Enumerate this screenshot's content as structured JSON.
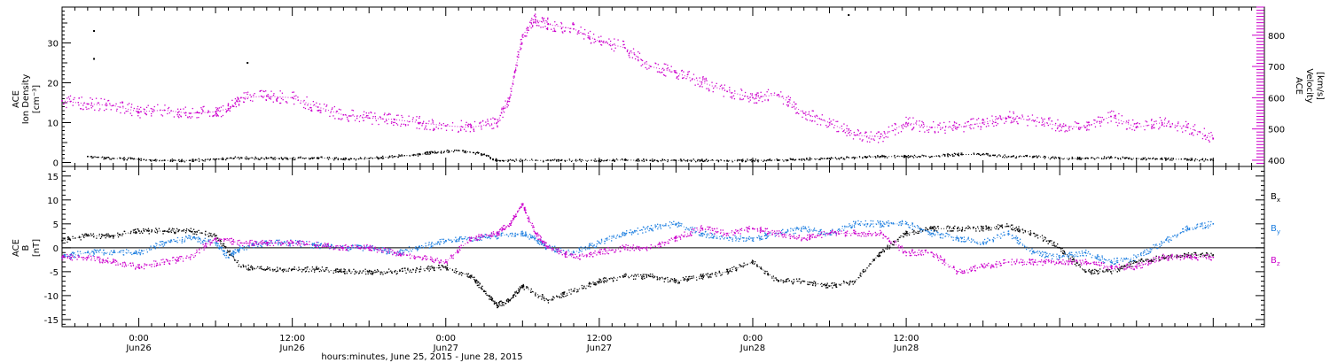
{
  "chart_data": [
    {
      "type": "scatter",
      "ylabel_left": [
        "ACE",
        "Ion Density",
        "[cm⁻³]"
      ],
      "ylabel_right": [
        "ACE",
        "Velocity",
        "[km/s]"
      ],
      "xlim_hours": [
        -6,
        88
      ],
      "ylim_left": [
        -1,
        39
      ],
      "ylim_right": [
        380,
        890
      ],
      "yticks_left": [
        "0",
        "10",
        "20",
        "30"
      ],
      "yticks_right": [
        "400",
        "500",
        "600",
        "700",
        "800"
      ],
      "series": [
        {
          "axis": "left",
          "color": "#000000",
          "x": [
            -4,
            -2,
            0,
            2,
            4,
            6,
            8,
            10,
            12,
            14,
            16,
            18,
            20,
            22,
            23,
            25,
            27,
            28,
            30,
            33,
            36,
            38,
            40,
            42,
            44,
            46,
            48,
            50,
            52,
            54,
            56,
            58,
            60,
            62,
            64,
            66,
            68,
            70,
            72,
            74,
            76,
            78,
            80,
            82,
            84
          ],
          "y": [
            1.5,
            1,
            0.8,
            0.5,
            0.5,
            0.8,
            1.2,
            1,
            1,
            1.2,
            0.8,
            1,
            1.5,
            2,
            2.5,
            3,
            2,
            0.5,
            0.5,
            0.5,
            0.5,
            0.6,
            0.5,
            0.5,
            0.5,
            0.5,
            0.5,
            0.6,
            0.8,
            1,
            1.2,
            1.5,
            1.5,
            1.5,
            2,
            2,
            1.5,
            1.5,
            1,
            1,
            1.2,
            1,
            0.8,
            0.8,
            0.5
          ]
        },
        {
          "axis": "right",
          "color": "#cc00cc",
          "x": [
            -6,
            -4,
            -2,
            0,
            2,
            4,
            6,
            7,
            8,
            10,
            12,
            14,
            16,
            18,
            20,
            22,
            24,
            26,
            28,
            29,
            30,
            31,
            32,
            34,
            36,
            38,
            40,
            42,
            44,
            46,
            48,
            50,
            52,
            54,
            56,
            58,
            60,
            62,
            64,
            66,
            68,
            70,
            72,
            74,
            76,
            78,
            80,
            82,
            84
          ],
          "y": [
            590,
            580,
            575,
            555,
            560,
            550,
            555,
            565,
            600,
            605,
            600,
            570,
            545,
            535,
            530,
            520,
            510,
            505,
            520,
            600,
            800,
            850,
            835,
            820,
            780,
            760,
            700,
            680,
            650,
            620,
            600,
            610,
            550,
            520,
            480,
            475,
            520,
            505,
            505,
            520,
            540,
            525,
            510,
            505,
            540,
            505,
            520,
            505,
            470
          ]
        }
      ]
    },
    {
      "type": "scatter",
      "ylabel_left": [
        "ACE",
        "B",
        "[nT]"
      ],
      "xlim_hours": [
        -6,
        88
      ],
      "ylim": [
        -16.5,
        17
      ],
      "yticks": [
        "-15",
        "-10",
        "-5",
        "0",
        "5",
        "10",
        "15"
      ],
      "zero_line": true,
      "legend_position": "right",
      "series": [
        {
          "name": "Bx",
          "color": "#000000",
          "x": [
            -6,
            -4,
            -2,
            0,
            2,
            4,
            6,
            8,
            10,
            12,
            14,
            16,
            18,
            20,
            22,
            24,
            26,
            27,
            28,
            29,
            30,
            32,
            34,
            36,
            38,
            40,
            42,
            44,
            46,
            48,
            50,
            52,
            54,
            56,
            58,
            60,
            62,
            64,
            66,
            68,
            70,
            72,
            74,
            76,
            78,
            80,
            82,
            84
          ],
          "y": [
            1.5,
            2.5,
            2.5,
            3.5,
            3.5,
            3.5,
            2.5,
            -4,
            -4.5,
            -4.5,
            -4.5,
            -5,
            -5,
            -5,
            -4.5,
            -4,
            -6,
            -9,
            -12,
            -11,
            -8,
            -11,
            -9,
            -7,
            -6,
            -6,
            -7,
            -6,
            -5,
            -3,
            -7,
            -7,
            -8,
            -7,
            -1,
            3,
            4,
            4,
            4,
            4.5,
            3,
            0,
            -5,
            -5,
            -3,
            -2,
            -1.5,
            -1.5
          ]
        },
        {
          "name": "By",
          "color": "#1e7fe0",
          "x": [
            -6,
            -4,
            -2,
            0,
            2,
            4,
            6,
            7,
            8,
            10,
            12,
            14,
            16,
            18,
            20,
            22,
            24,
            26,
            28,
            30,
            31,
            32,
            34,
            36,
            38,
            40,
            42,
            44,
            46,
            48,
            50,
            52,
            54,
            56,
            58,
            60,
            62,
            64,
            66,
            68,
            70,
            72,
            74,
            76,
            78,
            80,
            82,
            84
          ],
          "y": [
            -2,
            -1,
            -1,
            -1,
            1,
            2,
            1,
            -2,
            0,
            1,
            1,
            0.5,
            0,
            0,
            -1,
            0,
            1.5,
            2,
            2.5,
            3,
            2,
            0,
            -1,
            1,
            3,
            4,
            5,
            3,
            2,
            2,
            3,
            4,
            3,
            5,
            5,
            5,
            3,
            2,
            1,
            3,
            -1,
            -2,
            -1,
            -3,
            -2,
            1,
            4,
            5
          ]
        },
        {
          "name": "Bz",
          "color": "#cc00cc",
          "x": [
            -6,
            -4,
            -2,
            0,
            2,
            4,
            6,
            8,
            10,
            12,
            14,
            16,
            18,
            20,
            22,
            24,
            26,
            28,
            29,
            30,
            31,
            32,
            34,
            36,
            38,
            40,
            42,
            44,
            46,
            48,
            50,
            52,
            54,
            56,
            58,
            60,
            62,
            64,
            66,
            68,
            70,
            72,
            74,
            76,
            78,
            80,
            82,
            84
          ],
          "y": [
            -2,
            -2,
            -3,
            -4,
            -3,
            -2,
            2,
            1,
            1,
            1,
            0.5,
            0,
            0,
            -1,
            -2,
            -3,
            2,
            3,
            5,
            9,
            3,
            0,
            -2,
            -1,
            0,
            0,
            2,
            4,
            3,
            4,
            3,
            2,
            3,
            3,
            3,
            -1,
            -1,
            -5,
            -4,
            -3,
            -3,
            -3,
            -3,
            -4,
            -4,
            -2,
            -2,
            -2
          ]
        }
      ]
    }
  ],
  "x_axis": {
    "tick_labels": [
      {
        "hours": 0,
        "time": "0:00",
        "date": "Jun26"
      },
      {
        "hours": 12,
        "time": "12:00",
        "date": "Jun26"
      },
      {
        "hours": 24,
        "time": "0:00",
        "date": "Jun27"
      },
      {
        "hours": 36,
        "time": "12:00",
        "date": "Jun27"
      },
      {
        "hours": 48,
        "time": "0:00",
        "date": "Jun28"
      },
      {
        "hours": 60,
        "time": "12:00",
        "date": "Jun28"
      }
    ],
    "label": "hours:minutes, June 25, 2015 - June 28, 2015"
  },
  "outlier_points_top": {
    "x": [
      -3.5,
      -3.5,
      8.5,
      55.5
    ],
    "y": [
      33,
      26,
      25,
      37
    ]
  },
  "colors": {
    "black": "#000000",
    "magenta": "#cc00cc",
    "blue": "#1e7fe0"
  }
}
